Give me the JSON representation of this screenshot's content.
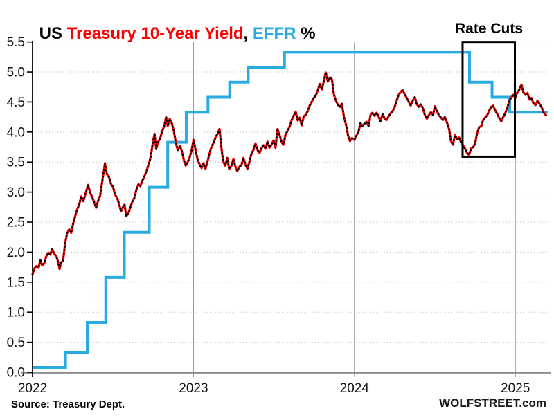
{
  "title": {
    "us": "US ",
    "yield": "Treasury 10-Year Yield",
    "comma": ", ",
    "effr": "EFFR",
    "pct": " %"
  },
  "annotation": {
    "label": "Rate Cuts"
  },
  "footer": {
    "source": "Source: Treasury Dept.",
    "brand": "WOLFSTREET.com"
  },
  "colors": {
    "yield_line": "#ff0000",
    "yield_dots": "#000000",
    "effr_line": "#29abe2",
    "title_yield": "#ff0000",
    "title_effr": "#29abe2",
    "grid_dotted": "#c2c2c2",
    "year_line": "#9a9a9a",
    "bottom_axis": "#8c8c8c",
    "spine": "#000000",
    "tick_text": "#111111",
    "annotation_box": "#000000"
  },
  "chart_data": {
    "type": "line",
    "title": "US Treasury 10-Year Yield, EFFR %",
    "xlabel": "",
    "ylabel": "",
    "xlim": [
      2022.0,
      2025.21
    ],
    "ylim": [
      0,
      5.5
    ],
    "grid": {
      "horizontal": "dotted",
      "vertical_years": [
        2023,
        2024,
        2025
      ]
    },
    "x_tick_values": [
      2022,
      2023,
      2024,
      2025
    ],
    "x_tick_labels": [
      "2022",
      "2023",
      "2024",
      "2025"
    ],
    "y_tick_values": [
      0,
      0.5,
      1,
      1.5,
      2,
      2.5,
      3,
      3.5,
      4,
      4.5,
      5,
      5.5
    ],
    "y_tick_labels": [
      "0.0",
      "0.5",
      "1.0",
      "1.5",
      "2.0",
      "2.5",
      "3.0",
      "3.5",
      "4.0",
      "4.5",
      "5.0",
      "5.5"
    ],
    "annotation_box": {
      "label": "Rate Cuts",
      "x0": 2024.672,
      "x1": 2024.997,
      "y0": 3.59,
      "y1": 5.5
    },
    "series": [
      {
        "name": "US Treasury 10-Year Yield",
        "type": "line",
        "color": "#ff0000",
        "overlay_dots_color": "#000000",
        "points": [
          [
            2022.0,
            1.63
          ],
          [
            2022.012,
            1.73
          ],
          [
            2022.025,
            1.77
          ],
          [
            2022.038,
            1.74
          ],
          [
            2022.048,
            1.87
          ],
          [
            2022.06,
            1.78
          ],
          [
            2022.072,
            1.81
          ],
          [
            2022.085,
            1.93
          ],
          [
            2022.098,
            1.99
          ],
          [
            2022.11,
            1.96
          ],
          [
            2022.122,
            2.05
          ],
          [
            2022.135,
            1.97
          ],
          [
            2022.148,
            1.93
          ],
          [
            2022.158,
            1.85
          ],
          [
            2022.168,
            1.72
          ],
          [
            2022.178,
            1.83
          ],
          [
            2022.19,
            1.86
          ],
          [
            2022.202,
            2.14
          ],
          [
            2022.215,
            2.32
          ],
          [
            2022.228,
            2.38
          ],
          [
            2022.24,
            2.32
          ],
          [
            2022.252,
            2.47
          ],
          [
            2022.265,
            2.6
          ],
          [
            2022.278,
            2.72
          ],
          [
            2022.29,
            2.79
          ],
          [
            2022.302,
            2.93
          ],
          [
            2022.315,
            2.85
          ],
          [
            2022.328,
            2.96
          ],
          [
            2022.345,
            3.12
          ],
          [
            2022.358,
            2.99
          ],
          [
            2022.37,
            2.92
          ],
          [
            2022.382,
            2.84
          ],
          [
            2022.395,
            2.74
          ],
          [
            2022.408,
            2.86
          ],
          [
            2022.42,
            2.94
          ],
          [
            2022.432,
            3.16
          ],
          [
            2022.45,
            3.48
          ],
          [
            2022.462,
            3.3
          ],
          [
            2022.475,
            3.25
          ],
          [
            2022.488,
            3.13
          ],
          [
            2022.5,
            3.09
          ],
          [
            2022.512,
            2.96
          ],
          [
            2022.525,
            2.91
          ],
          [
            2022.538,
            2.8
          ],
          [
            2022.55,
            2.68
          ],
          [
            2022.562,
            2.75
          ],
          [
            2022.572,
            2.79
          ],
          [
            2022.582,
            2.6
          ],
          [
            2022.595,
            2.64
          ],
          [
            2022.608,
            2.75
          ],
          [
            2022.62,
            2.84
          ],
          [
            2022.632,
            2.9
          ],
          [
            2022.645,
            3.04
          ],
          [
            2022.658,
            3.13
          ],
          [
            2022.67,
            3.1
          ],
          [
            2022.682,
            3.19
          ],
          [
            2022.695,
            3.26
          ],
          [
            2022.708,
            3.35
          ],
          [
            2022.72,
            3.45
          ],
          [
            2022.732,
            3.56
          ],
          [
            2022.74,
            3.69
          ],
          [
            2022.748,
            3.83
          ],
          [
            2022.758,
            3.97
          ],
          [
            2022.768,
            3.72
          ],
          [
            2022.78,
            3.83
          ],
          [
            2022.792,
            3.89
          ],
          [
            2022.805,
            4.01
          ],
          [
            2022.818,
            4.1
          ],
          [
            2022.83,
            4.25
          ],
          [
            2022.84,
            4.1
          ],
          [
            2022.852,
            4.22
          ],
          [
            2022.865,
            4.15
          ],
          [
            2022.878,
            4.02
          ],
          [
            2022.89,
            3.83
          ],
          [
            2022.902,
            3.7
          ],
          [
            2022.915,
            3.77
          ],
          [
            2022.928,
            3.68
          ],
          [
            2022.94,
            3.53
          ],
          [
            2022.952,
            3.44
          ],
          [
            2022.962,
            3.49
          ],
          [
            2022.975,
            3.57
          ],
          [
            2022.988,
            3.69
          ],
          [
            2023.0,
            3.87
          ],
          [
            2023.012,
            3.71
          ],
          [
            2023.025,
            3.55
          ],
          [
            2023.038,
            3.46
          ],
          [
            2023.05,
            3.4
          ],
          [
            2023.062,
            3.48
          ],
          [
            2023.075,
            3.39
          ],
          [
            2023.088,
            3.52
          ],
          [
            2023.1,
            3.65
          ],
          [
            2023.112,
            3.75
          ],
          [
            2023.125,
            3.82
          ],
          [
            2023.138,
            3.92
          ],
          [
            2023.15,
            3.97
          ],
          [
            2023.162,
            4.05
          ],
          [
            2023.175,
            3.7
          ],
          [
            2023.185,
            3.51
          ],
          [
            2023.198,
            3.44
          ],
          [
            2023.21,
            3.57
          ],
          [
            2023.222,
            3.38
          ],
          [
            2023.235,
            3.43
          ],
          [
            2023.248,
            3.55
          ],
          [
            2023.26,
            3.43
          ],
          [
            2023.272,
            3.35
          ],
          [
            2023.285,
            3.42
          ],
          [
            2023.298,
            3.45
          ],
          [
            2023.31,
            3.57
          ],
          [
            2023.322,
            3.46
          ],
          [
            2023.335,
            3.39
          ],
          [
            2023.348,
            3.51
          ],
          [
            2023.36,
            3.64
          ],
          [
            2023.372,
            3.7
          ],
          [
            2023.385,
            3.81
          ],
          [
            2023.398,
            3.7
          ],
          [
            2023.41,
            3.65
          ],
          [
            2023.422,
            3.73
          ],
          [
            2023.435,
            3.78
          ],
          [
            2023.448,
            3.72
          ],
          [
            2023.46,
            3.84
          ],
          [
            2023.472,
            3.74
          ],
          [
            2023.485,
            3.79
          ],
          [
            2023.498,
            3.86
          ],
          [
            2023.51,
            3.74
          ],
          [
            2023.522,
            4.05
          ],
          [
            2023.535,
            3.95
          ],
          [
            2023.548,
            3.83
          ],
          [
            2023.56,
            3.79
          ],
          [
            2023.572,
            3.96
          ],
          [
            2023.585,
            4.02
          ],
          [
            2023.598,
            4.1
          ],
          [
            2023.61,
            4.2
          ],
          [
            2023.622,
            4.27
          ],
          [
            2023.635,
            4.34
          ],
          [
            2023.648,
            4.19
          ],
          [
            2023.66,
            4.24
          ],
          [
            2023.672,
            4.11
          ],
          [
            2023.685,
            4.26
          ],
          [
            2023.698,
            4.29
          ],
          [
            2023.71,
            4.35
          ],
          [
            2023.722,
            4.44
          ],
          [
            2023.735,
            4.5
          ],
          [
            2023.748,
            4.57
          ],
          [
            2023.76,
            4.61
          ],
          [
            2023.772,
            4.69
          ],
          [
            2023.785,
            4.8
          ],
          [
            2023.798,
            4.71
          ],
          [
            2023.81,
            4.85
          ],
          [
            2023.822,
            4.99
          ],
          [
            2023.835,
            4.84
          ],
          [
            2023.848,
            4.91
          ],
          [
            2023.86,
            4.88
          ],
          [
            2023.872,
            4.63
          ],
          [
            2023.885,
            4.52
          ],
          [
            2023.898,
            4.45
          ],
          [
            2023.91,
            4.42
          ],
          [
            2023.922,
            4.47
          ],
          [
            2023.935,
            4.25
          ],
          [
            2023.948,
            4.12
          ],
          [
            2023.96,
            3.95
          ],
          [
            2023.972,
            3.85
          ],
          [
            2023.985,
            3.9
          ],
          [
            2024.0,
            3.87
          ],
          [
            2024.012,
            3.94
          ],
          [
            2024.025,
            4.0
          ],
          [
            2024.038,
            4.15
          ],
          [
            2024.05,
            4.1
          ],
          [
            2024.062,
            4.14
          ],
          [
            2024.075,
            4.17
          ],
          [
            2024.088,
            4.1
          ],
          [
            2024.1,
            4.28
          ],
          [
            2024.112,
            4.32
          ],
          [
            2024.125,
            4.27
          ],
          [
            2024.138,
            4.32
          ],
          [
            2024.15,
            4.26
          ],
          [
            2024.162,
            4.18
          ],
          [
            2024.175,
            4.3
          ],
          [
            2024.188,
            4.22
          ],
          [
            2024.2,
            4.2
          ],
          [
            2024.212,
            4.26
          ],
          [
            2024.225,
            4.31
          ],
          [
            2024.238,
            4.35
          ],
          [
            2024.25,
            4.42
          ],
          [
            2024.262,
            4.52
          ],
          [
            2024.275,
            4.62
          ],
          [
            2024.288,
            4.67
          ],
          [
            2024.3,
            4.7
          ],
          [
            2024.312,
            4.63
          ],
          [
            2024.325,
            4.57
          ],
          [
            2024.338,
            4.5
          ],
          [
            2024.35,
            4.44
          ],
          [
            2024.362,
            4.52
          ],
          [
            2024.375,
            4.58
          ],
          [
            2024.388,
            4.46
          ],
          [
            2024.4,
            4.42
          ],
          [
            2024.412,
            4.46
          ],
          [
            2024.425,
            4.4
          ],
          [
            2024.438,
            4.28
          ],
          [
            2024.45,
            4.22
          ],
          [
            2024.462,
            4.28
          ],
          [
            2024.475,
            4.33
          ],
          [
            2024.488,
            4.28
          ],
          [
            2024.5,
            4.43
          ],
          [
            2024.512,
            4.35
          ],
          [
            2024.525,
            4.28
          ],
          [
            2024.538,
            4.24
          ],
          [
            2024.55,
            4.2
          ],
          [
            2024.562,
            4.25
          ],
          [
            2024.575,
            4.16
          ],
          [
            2024.588,
            4.05
          ],
          [
            2024.6,
            3.85
          ],
          [
            2024.612,
            3.79
          ],
          [
            2024.625,
            3.95
          ],
          [
            2024.638,
            3.88
          ],
          [
            2024.65,
            3.91
          ],
          [
            2024.662,
            3.83
          ],
          [
            2024.675,
            3.78
          ],
          [
            2024.688,
            3.72
          ],
          [
            2024.7,
            3.65
          ],
          [
            2024.712,
            3.62
          ],
          [
            2024.725,
            3.73
          ],
          [
            2024.738,
            3.75
          ],
          [
            2024.75,
            3.81
          ],
          [
            2024.762,
            3.98
          ],
          [
            2024.775,
            4.08
          ],
          [
            2024.788,
            4.1
          ],
          [
            2024.8,
            4.2
          ],
          [
            2024.812,
            4.24
          ],
          [
            2024.825,
            4.28
          ],
          [
            2024.838,
            4.36
          ],
          [
            2024.85,
            4.42
          ],
          [
            2024.862,
            4.44
          ],
          [
            2024.875,
            4.36
          ],
          [
            2024.888,
            4.3
          ],
          [
            2024.9,
            4.23
          ],
          [
            2024.912,
            4.18
          ],
          [
            2024.925,
            4.25
          ],
          [
            2024.938,
            4.32
          ],
          [
            2024.95,
            4.4
          ],
          [
            2024.962,
            4.52
          ],
          [
            2024.975,
            4.58
          ],
          [
            2024.988,
            4.62
          ],
          [
            2025.0,
            4.57
          ],
          [
            2025.012,
            4.66
          ],
          [
            2025.025,
            4.71
          ],
          [
            2025.038,
            4.79
          ],
          [
            2025.05,
            4.66
          ],
          [
            2025.062,
            4.62
          ],
          [
            2025.075,
            4.65
          ],
          [
            2025.088,
            4.54
          ],
          [
            2025.1,
            4.57
          ],
          [
            2025.112,
            4.48
          ],
          [
            2025.125,
            4.45
          ],
          [
            2025.138,
            4.52
          ],
          [
            2025.15,
            4.47
          ],
          [
            2025.162,
            4.42
          ],
          [
            2025.175,
            4.33
          ],
          [
            2025.19,
            4.28
          ]
        ]
      },
      {
        "name": "EFFR",
        "type": "step",
        "color": "#29abe2",
        "end_x": 2025.205,
        "points": [
          [
            2022.0,
            0.08
          ],
          [
            2022.205,
            0.33
          ],
          [
            2022.34,
            0.83
          ],
          [
            2022.455,
            1.58
          ],
          [
            2022.57,
            2.33
          ],
          [
            2022.725,
            3.08
          ],
          [
            2022.84,
            3.83
          ],
          [
            2022.955,
            4.33
          ],
          [
            2023.09,
            4.58
          ],
          [
            2023.225,
            4.83
          ],
          [
            2023.34,
            5.08
          ],
          [
            2023.565,
            5.33
          ],
          [
            2024.715,
            4.83
          ],
          [
            2024.855,
            4.58
          ],
          [
            2024.965,
            4.33
          ]
        ]
      }
    ]
  }
}
